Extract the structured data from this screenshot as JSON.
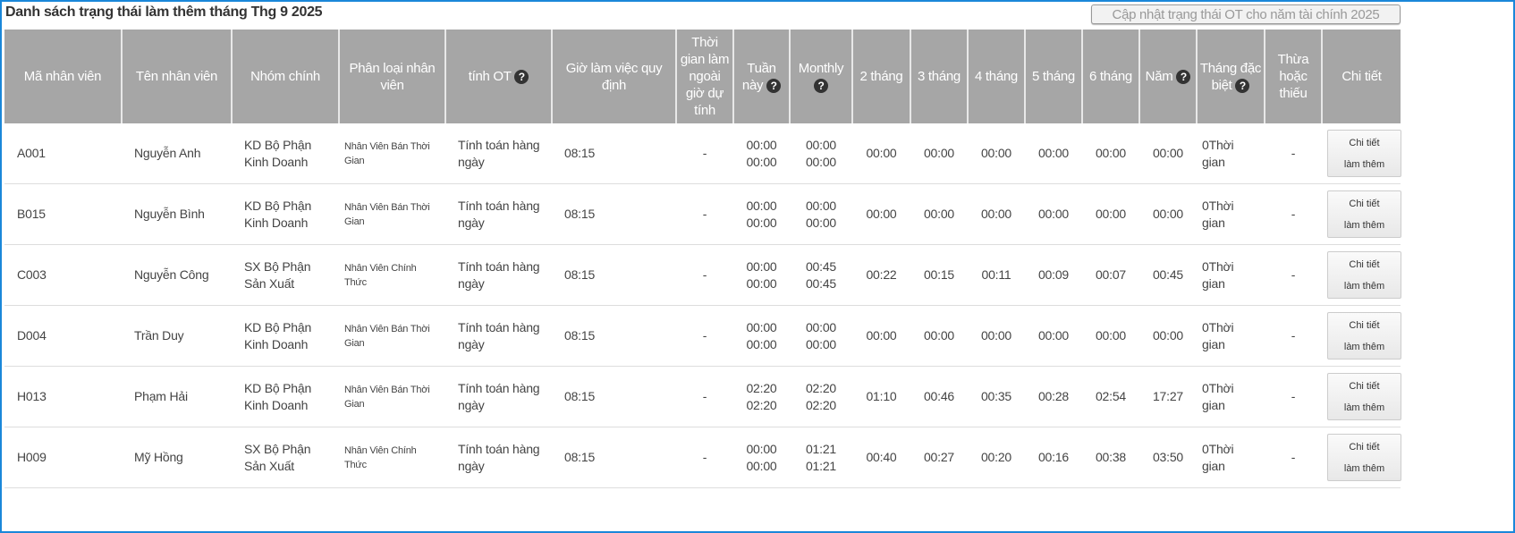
{
  "title": "Danh sách trạng thái làm thêm tháng Thg 9 2025",
  "update_button": "Cập nhật trạng thái OT cho năm tài chính 2025",
  "help_icon_glyph": "?",
  "colors": {
    "header_bg": "#a6a6a6",
    "frame": "#1a87d9"
  },
  "columns": [
    {
      "label": "Mã nhân viên"
    },
    {
      "label": "Tên nhân viên"
    },
    {
      "label": "Nhóm chính"
    },
    {
      "label": "Phân loại nhân viên"
    },
    {
      "label": "tính OT",
      "help": true
    },
    {
      "label": "Giờ làm việc quy định"
    },
    {
      "label": "Thời gian làm ngoài giờ dự tính"
    },
    {
      "label": "Tuần này",
      "help": true
    },
    {
      "label": "Monthly",
      "help": true
    },
    {
      "label": "2 tháng"
    },
    {
      "label": "3 tháng"
    },
    {
      "label": "4 tháng"
    },
    {
      "label": "5 tháng"
    },
    {
      "label": "6 tháng"
    },
    {
      "label": "Năm",
      "help": true
    },
    {
      "label": "Tháng đặc biệt",
      "help": true
    },
    {
      "label": "Thừa hoặc thiếu"
    },
    {
      "label": "Chi tiết"
    }
  ],
  "rows": [
    {
      "id": "A001",
      "name": "Nguyễn Anh",
      "group": "KD Bộ Phận Kinh Doanh",
      "type": "Nhân Viên Bán Thời Gian",
      "ot_calc": "Tính toán hàng ngày",
      "regular": "08:15",
      "estimated": "-",
      "week": [
        "00:00",
        "00:00"
      ],
      "monthly": [
        "00:00",
        "00:00"
      ],
      "m2": "00:00",
      "m3": "00:00",
      "m4": "00:00",
      "m5": "00:00",
      "m6": "00:00",
      "year": "00:00",
      "special": "0Thời gian",
      "diff": "-",
      "detail": [
        "Chi tiết",
        "làm thêm"
      ]
    },
    {
      "id": "B015",
      "name": "Nguyễn Bình",
      "group": "KD Bộ Phận Kinh Doanh",
      "type": "Nhân Viên Bán Thời Gian",
      "ot_calc": "Tính toán hàng ngày",
      "regular": "08:15",
      "estimated": "-",
      "week": [
        "00:00",
        "00:00"
      ],
      "monthly": [
        "00:00",
        "00:00"
      ],
      "m2": "00:00",
      "m3": "00:00",
      "m4": "00:00",
      "m5": "00:00",
      "m6": "00:00",
      "year": "00:00",
      "special": "0Thời gian",
      "diff": "-",
      "detail": [
        "Chi tiết",
        "làm thêm"
      ]
    },
    {
      "id": "C003",
      "name": "Nguyễn Công",
      "group": "SX Bộ Phận Sản Xuất",
      "type": "Nhân Viên Chính Thức",
      "ot_calc": "Tính toán hàng ngày",
      "regular": "08:15",
      "estimated": "-",
      "week": [
        "00:00",
        "00:00"
      ],
      "monthly": [
        "00:45",
        "00:45"
      ],
      "m2": "00:22",
      "m3": "00:15",
      "m4": "00:11",
      "m5": "00:09",
      "m6": "00:07",
      "year": "00:45",
      "special": "0Thời gian",
      "diff": "-",
      "detail": [
        "Chi tiết",
        "làm thêm"
      ]
    },
    {
      "id": "D004",
      "name": "Trần Duy",
      "group": "KD Bộ Phận Kinh Doanh",
      "type": "Nhân Viên Bán Thời Gian",
      "ot_calc": "Tính toán hàng ngày",
      "regular": "08:15",
      "estimated": "-",
      "week": [
        "00:00",
        "00:00"
      ],
      "monthly": [
        "00:00",
        "00:00"
      ],
      "m2": "00:00",
      "m3": "00:00",
      "m4": "00:00",
      "m5": "00:00",
      "m6": "00:00",
      "year": "00:00",
      "special": "0Thời gian",
      "diff": "-",
      "detail": [
        "Chi tiết",
        "làm thêm"
      ]
    },
    {
      "id": "H013",
      "name": "Phạm Hải",
      "group": "KD Bộ Phận Kinh Doanh",
      "type": "Nhân Viên Bán Thời Gian",
      "ot_calc": "Tính toán hàng ngày",
      "regular": "08:15",
      "estimated": "-",
      "week": [
        "02:20",
        "02:20"
      ],
      "monthly": [
        "02:20",
        "02:20"
      ],
      "m2": "01:10",
      "m3": "00:46",
      "m4": "00:35",
      "m5": "00:28",
      "m6": "02:54",
      "year": "17:27",
      "special": "0Thời gian",
      "diff": "-",
      "detail": [
        "Chi tiết",
        "làm thêm"
      ]
    },
    {
      "id": "H009",
      "name": "Mỹ Hồng",
      "group": "SX Bộ Phận Sản Xuất",
      "type": "Nhân Viên Chính Thức",
      "ot_calc": "Tính toán hàng ngày",
      "regular": "08:15",
      "estimated": "-",
      "week": [
        "00:00",
        "00:00"
      ],
      "monthly": [
        "01:21",
        "01:21"
      ],
      "m2": "00:40",
      "m3": "00:27",
      "m4": "00:20",
      "m5": "00:16",
      "m6": "00:38",
      "year": "03:50",
      "special": "0Thời gian",
      "diff": "-",
      "detail": [
        "Chi tiết",
        "làm thêm"
      ]
    }
  ]
}
